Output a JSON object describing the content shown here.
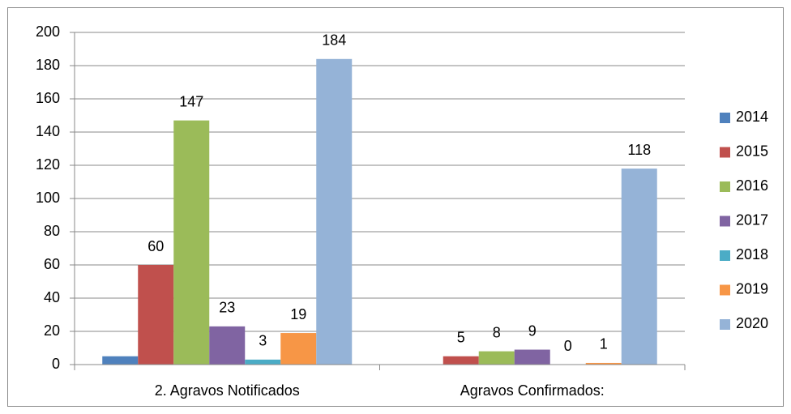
{
  "chart_data": {
    "type": "bar",
    "categories": [
      "2. Agravos Notificados",
      "Agravos Confirmados:"
    ],
    "series": [
      {
        "name": "2014",
        "color": "#4f81bd",
        "values": [
          5,
          null
        ],
        "data_labels": false
      },
      {
        "name": "2015",
        "color": "#c0504d",
        "values": [
          60,
          5
        ],
        "data_labels": true
      },
      {
        "name": "2016",
        "color": "#9bbb59",
        "values": [
          147,
          8
        ],
        "data_labels": true
      },
      {
        "name": "2017",
        "color": "#8064a2",
        "values": [
          23,
          9
        ],
        "data_labels": true
      },
      {
        "name": "2018",
        "color": "#4bacc6",
        "values": [
          3,
          0
        ],
        "data_labels": true
      },
      {
        "name": "2019",
        "color": "#f79646",
        "values": [
          19,
          1
        ],
        "data_labels": true
      },
      {
        "name": "2020",
        "color": "#95b3d7",
        "values": [
          184,
          118
        ],
        "data_labels": true
      }
    ],
    "ylim": [
      0,
      200
    ],
    "yticks": [
      0,
      20,
      40,
      60,
      80,
      100,
      120,
      140,
      160,
      180,
      200
    ],
    "grid": true,
    "legend": "right"
  }
}
